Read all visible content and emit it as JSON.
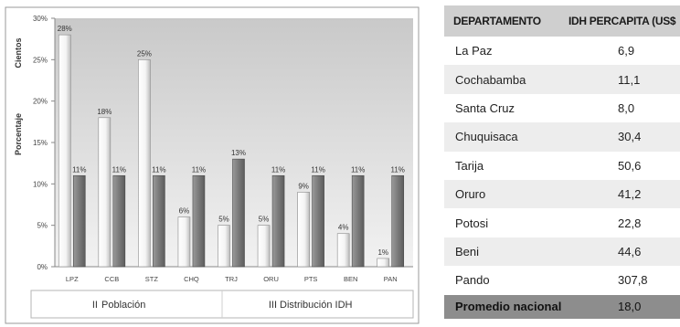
{
  "chart_data": {
    "type": "bar",
    "categories": [
      "LPZ",
      "CCB",
      "STZ",
      "CHQ",
      "TRJ",
      "ORU",
      "PTS",
      "BEN",
      "PAN"
    ],
    "series": [
      {
        "name": "Población",
        "values": [
          28,
          18,
          25,
          6,
          5,
          5,
          9,
          4,
          1
        ],
        "color": "#f4f4f4"
      },
      {
        "name": "Distribución IDH",
        "values": [
          11,
          11,
          11,
          11,
          13,
          11,
          11,
          11,
          11
        ],
        "color": "#7f7f7f"
      }
    ],
    "data_labels": [
      [
        "28%",
        "18%",
        "25%",
        "6%",
        "5%",
        "5%",
        "9%",
        "4%",
        "1%"
      ],
      [
        "11%",
        "11%",
        "11%",
        "11%",
        "13%",
        "11%",
        "11%",
        "11%",
        "11%"
      ]
    ],
    "ylim": [
      0,
      30
    ],
    "yticks": [
      0,
      5,
      10,
      15,
      20,
      25,
      30
    ],
    "ytick_labels": [
      "0%",
      "5%",
      "10%",
      "15%",
      "20%",
      "25%",
      "30%"
    ],
    "ylabel": "Porcentaje",
    "ylabel_secondary": "Cientos",
    "xlabel": "",
    "title": "",
    "legend": {
      "placement": "bottom",
      "items": [
        "Población",
        "Distribución IDH"
      ],
      "markers": [
        "II",
        "III"
      ]
    },
    "grid": false
  },
  "table": {
    "headers": [
      "DEPARTAMENTO",
      "IDH PERCAPITA (US$"
    ],
    "rows": [
      [
        "La Paz",
        "6,9"
      ],
      [
        "Cochabamba",
        "11,1"
      ],
      [
        "Santa Cruz",
        "8,0"
      ],
      [
        "Chuquisaca",
        "30,4"
      ],
      [
        "Tarija",
        "50,6"
      ],
      [
        "Oruro",
        "41,2"
      ],
      [
        "Potosi",
        "22,8"
      ],
      [
        "Beni",
        "44,6"
      ],
      [
        "Pando",
        "307,8"
      ]
    ],
    "footer": [
      "Promedio nacional",
      "18,0"
    ]
  },
  "colors": {
    "plot_top": "#c9c9c9",
    "plot_bottom": "#f2f2f2",
    "frame": "#9a9a9a",
    "table_header": "#cfcfcf",
    "table_alt": "#ededed",
    "table_footer": "#8d8d8d"
  }
}
